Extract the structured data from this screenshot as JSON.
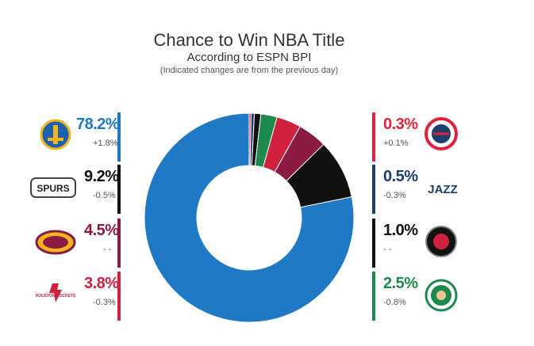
{
  "title": "Chance to Win NBA Title",
  "subtitle": "According to ESPN BPI",
  "note": "(Indicated changes are from the previous day)",
  "colors": {
    "warriors": "#1f79c4",
    "spurs": "#111111",
    "cavaliers": "#8c1b44",
    "rockets": "#d0213e",
    "wizards": "#e1213c",
    "jazz": "#1c3f6e",
    "raptors": "#111111",
    "celtics": "#1c8a4c"
  },
  "logos": {
    "spurs_text": "SPURS",
    "jazz_text": "JAZZ",
    "rockets_text": "HOUSTON ROCKETS"
  },
  "chart_data": {
    "type": "pie",
    "title": "Chance to Win NBA Title",
    "subtitle": "According to ESPN BPI",
    "note": "(Indicated changes are from the previous day)",
    "unit": "%",
    "slices": [
      {
        "team": "warriors",
        "value": 78.2,
        "label": "78.2%",
        "change": "+1.8%"
      },
      {
        "team": "spurs",
        "value": 9.2,
        "label": "9.2%",
        "change": "-0.5%"
      },
      {
        "team": "cavaliers",
        "value": 4.5,
        "label": "4.5%",
        "change": "- -"
      },
      {
        "team": "rockets",
        "value": 3.8,
        "label": "3.8%",
        "change": "-0.3%"
      },
      {
        "team": "celtics",
        "value": 2.5,
        "label": "2.5%",
        "change": "-0.8%"
      },
      {
        "team": "raptors",
        "value": 1.0,
        "label": "1.0%",
        "change": "- -"
      },
      {
        "team": "jazz",
        "value": 0.5,
        "label": "0.5%",
        "change": "-0.3%"
      },
      {
        "team": "wizards",
        "value": 0.3,
        "label": "0.3%",
        "change": "+0.1%"
      }
    ]
  }
}
